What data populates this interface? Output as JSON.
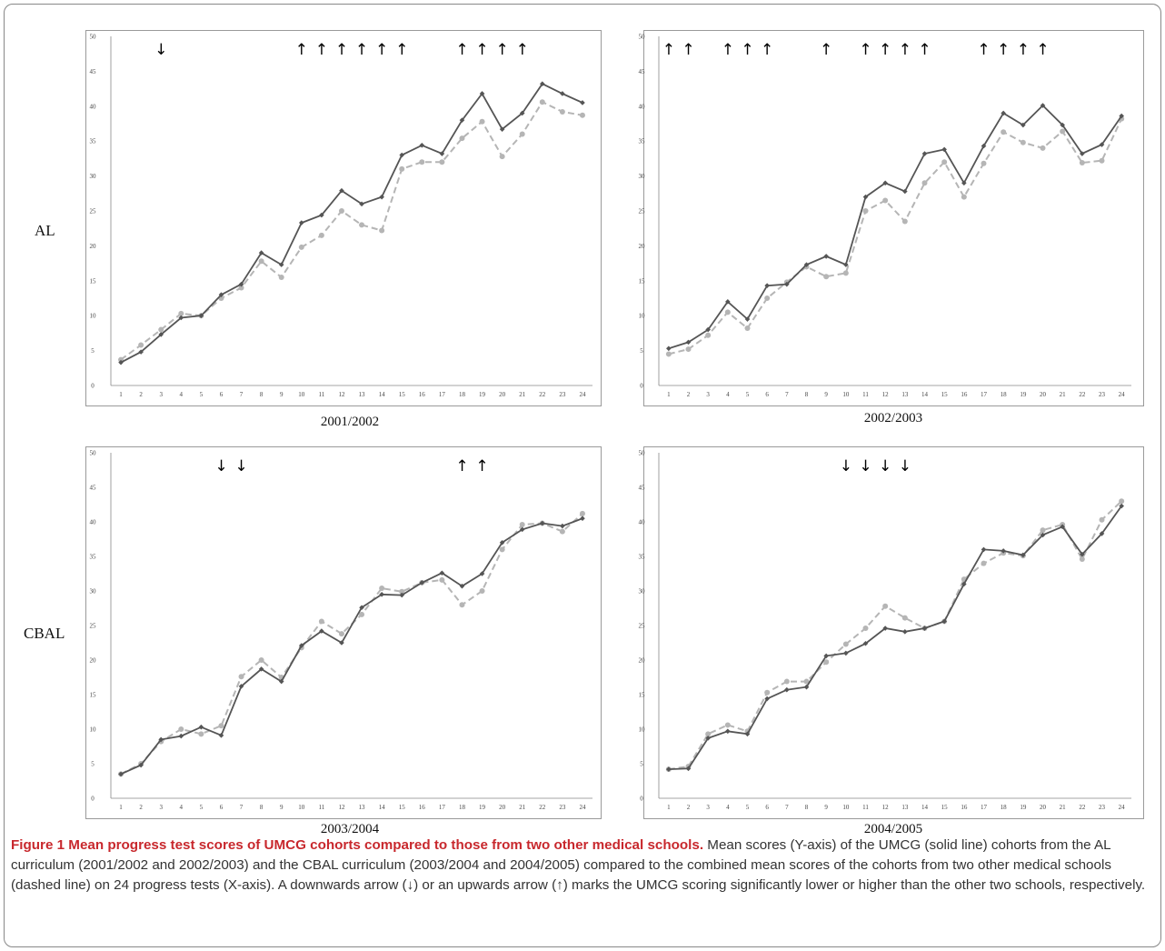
{
  "row_labels": [
    "AL",
    "CBAL"
  ],
  "caption": {
    "lead": "Figure 1 Mean progress test scores of UMCG cohorts compared to those from two other medical schools.",
    "body": "Mean scores (Y-axis) of the UMCG (solid line) cohorts from the AL curriculum (2001/2002 and 2002/2003) and the CBAL curriculum (2003/2004 and 2004/2005) compared to the combined mean scores of the cohorts from two other medical schools (dashed line) on 24 progress tests (X-axis). A downwards arrow (↓) or an upwards arrow (↑) marks the UMCG scoring significantly lower or higher than the other two schools, respectively."
  },
  "colors": {
    "umcg": "#555555",
    "other": "#b5b5b5",
    "caption_lead": "#c8282d"
  },
  "chart_data": [
    {
      "type": "line",
      "title": "2001/2002",
      "x": [
        1,
        2,
        3,
        4,
        5,
        6,
        7,
        8,
        9,
        10,
        11,
        12,
        13,
        14,
        15,
        16,
        17,
        18,
        19,
        20,
        21,
        22,
        23,
        24
      ],
      "ylim": [
        0,
        50
      ],
      "yticks": [
        0,
        5,
        10,
        15,
        20,
        25,
        30,
        35,
        40,
        45,
        50
      ],
      "series": [
        {
          "style": "solid",
          "values": [
            3.3,
            4.8,
            7.3,
            9.7,
            10,
            13,
            14.5,
            19,
            17.3,
            23.3,
            24.4,
            27.9,
            26,
            27,
            33,
            34.4,
            33.2,
            38,
            41.8,
            36.7,
            39,
            43.2,
            41.8,
            40.5
          ]
        },
        {
          "style": "dashed",
          "values": [
            3.7,
            5.8,
            8,
            10.3,
            10,
            12.5,
            14,
            17.8,
            15.5,
            19.8,
            21.5,
            25,
            23,
            22.2,
            31,
            32,
            32,
            35.4,
            37.8,
            32.8,
            36,
            40.6,
            39.2,
            38.7
          ]
        }
      ],
      "arrows": [
        {
          "x": 3,
          "direction": "down"
        },
        {
          "x": 10,
          "direction": "up"
        },
        {
          "x": 11,
          "direction": "up"
        },
        {
          "x": 12,
          "direction": "up"
        },
        {
          "x": 13,
          "direction": "up"
        },
        {
          "x": 14,
          "direction": "up"
        },
        {
          "x": 15,
          "direction": "up"
        },
        {
          "x": 18,
          "direction": "up"
        },
        {
          "x": 19,
          "direction": "up"
        },
        {
          "x": 20,
          "direction": "up"
        },
        {
          "x": 21,
          "direction": "up"
        }
      ]
    },
    {
      "type": "line",
      "title": "2002/2003",
      "x": [
        1,
        2,
        3,
        4,
        5,
        6,
        7,
        8,
        9,
        10,
        11,
        12,
        13,
        14,
        15,
        16,
        17,
        18,
        19,
        20,
        21,
        22,
        23,
        24
      ],
      "ylim": [
        0,
        50
      ],
      "yticks": [
        0,
        5,
        10,
        15,
        20,
        25,
        30,
        35,
        40,
        45,
        50
      ],
      "series": [
        {
          "style": "solid",
          "values": [
            5.3,
            6.2,
            8,
            12,
            9.5,
            14.3,
            14.5,
            17.3,
            18.5,
            17.3,
            27,
            29,
            27.8,
            33.2,
            33.8,
            29,
            34.3,
            39,
            37.3,
            40.1,
            37.3,
            33.2,
            34.5,
            38.6
          ]
        },
        {
          "style": "dashed",
          "values": [
            4.5,
            5.2,
            7.2,
            10.5,
            8.2,
            12.5,
            14.8,
            17,
            15.6,
            16.1,
            25,
            26.5,
            23.5,
            29,
            32,
            27,
            31.8,
            36.3,
            34.8,
            34,
            36.4,
            31.9,
            32.2,
            38.2
          ]
        }
      ],
      "arrows": [
        {
          "x": 1,
          "direction": "up"
        },
        {
          "x": 2,
          "direction": "up"
        },
        {
          "x": 4,
          "direction": "up"
        },
        {
          "x": 5,
          "direction": "up"
        },
        {
          "x": 6,
          "direction": "up"
        },
        {
          "x": 9,
          "direction": "up"
        },
        {
          "x": 11,
          "direction": "up"
        },
        {
          "x": 12,
          "direction": "up"
        },
        {
          "x": 13,
          "direction": "up"
        },
        {
          "x": 14,
          "direction": "up"
        },
        {
          "x": 17,
          "direction": "up"
        },
        {
          "x": 18,
          "direction": "up"
        },
        {
          "x": 19,
          "direction": "up"
        },
        {
          "x": 20,
          "direction": "up"
        }
      ]
    },
    {
      "type": "line",
      "title": "2003/2004",
      "x": [
        1,
        2,
        3,
        4,
        5,
        6,
        7,
        8,
        9,
        10,
        11,
        12,
        13,
        14,
        15,
        16,
        17,
        18,
        19,
        20,
        21,
        22,
        23,
        24
      ],
      "ylim": [
        0,
        50
      ],
      "yticks": [
        0,
        5,
        10,
        15,
        20,
        25,
        30,
        35,
        40,
        45,
        50
      ],
      "series": [
        {
          "style": "solid",
          "values": [
            3.5,
            4.8,
            8.5,
            9,
            10.3,
            9.1,
            16.2,
            18.7,
            16.9,
            22.1,
            24.2,
            22.5,
            27.6,
            29.5,
            29.4,
            31.2,
            32.6,
            30.7,
            32.5,
            37,
            38.9,
            39.8,
            39.4,
            40.5
          ]
        },
        {
          "style": "dashed",
          "values": [
            3.5,
            5,
            8.2,
            10,
            9.3,
            10.5,
            17.6,
            20,
            17.5,
            21.8,
            25.6,
            23.8,
            26.6,
            30.4,
            29.9,
            31.2,
            31.6,
            28,
            30,
            36,
            39.6,
            39.8,
            38.6,
            41.2
          ]
        }
      ],
      "arrows": [
        {
          "x": 6,
          "direction": "down"
        },
        {
          "x": 7,
          "direction": "down"
        },
        {
          "x": 18,
          "direction": "up"
        },
        {
          "x": 19,
          "direction": "up"
        }
      ]
    },
    {
      "type": "line",
      "title": "2004/2005",
      "x": [
        1,
        2,
        3,
        4,
        5,
        6,
        7,
        8,
        9,
        10,
        11,
        12,
        13,
        14,
        15,
        16,
        17,
        18,
        19,
        20,
        21,
        22,
        23,
        24
      ],
      "ylim": [
        0,
        50
      ],
      "yticks": [
        0,
        5,
        10,
        15,
        20,
        25,
        30,
        35,
        40,
        45,
        50
      ],
      "series": [
        {
          "style": "solid",
          "values": [
            4.2,
            4.3,
            8.7,
            9.7,
            9.3,
            14.4,
            15.7,
            16.1,
            20.6,
            21,
            22.4,
            24.6,
            24.1,
            24.6,
            25.6,
            31,
            36,
            35.8,
            35.2,
            38.1,
            39.3,
            35.3,
            38.3,
            42.3
          ]
        },
        {
          "style": "dashed",
          "values": [
            4.2,
            4.6,
            9.3,
            10.6,
            9.7,
            15.3,
            16.9,
            16.9,
            19.7,
            22.3,
            24.6,
            27.8,
            26.1,
            24.6,
            25.6,
            31.7,
            34,
            35.5,
            35.1,
            38.8,
            39.6,
            34.6,
            40.3,
            43
          ]
        }
      ],
      "arrows": [
        {
          "x": 10,
          "direction": "down"
        },
        {
          "x": 11,
          "direction": "down"
        },
        {
          "x": 12,
          "direction": "down"
        },
        {
          "x": 13,
          "direction": "down"
        }
      ]
    }
  ]
}
